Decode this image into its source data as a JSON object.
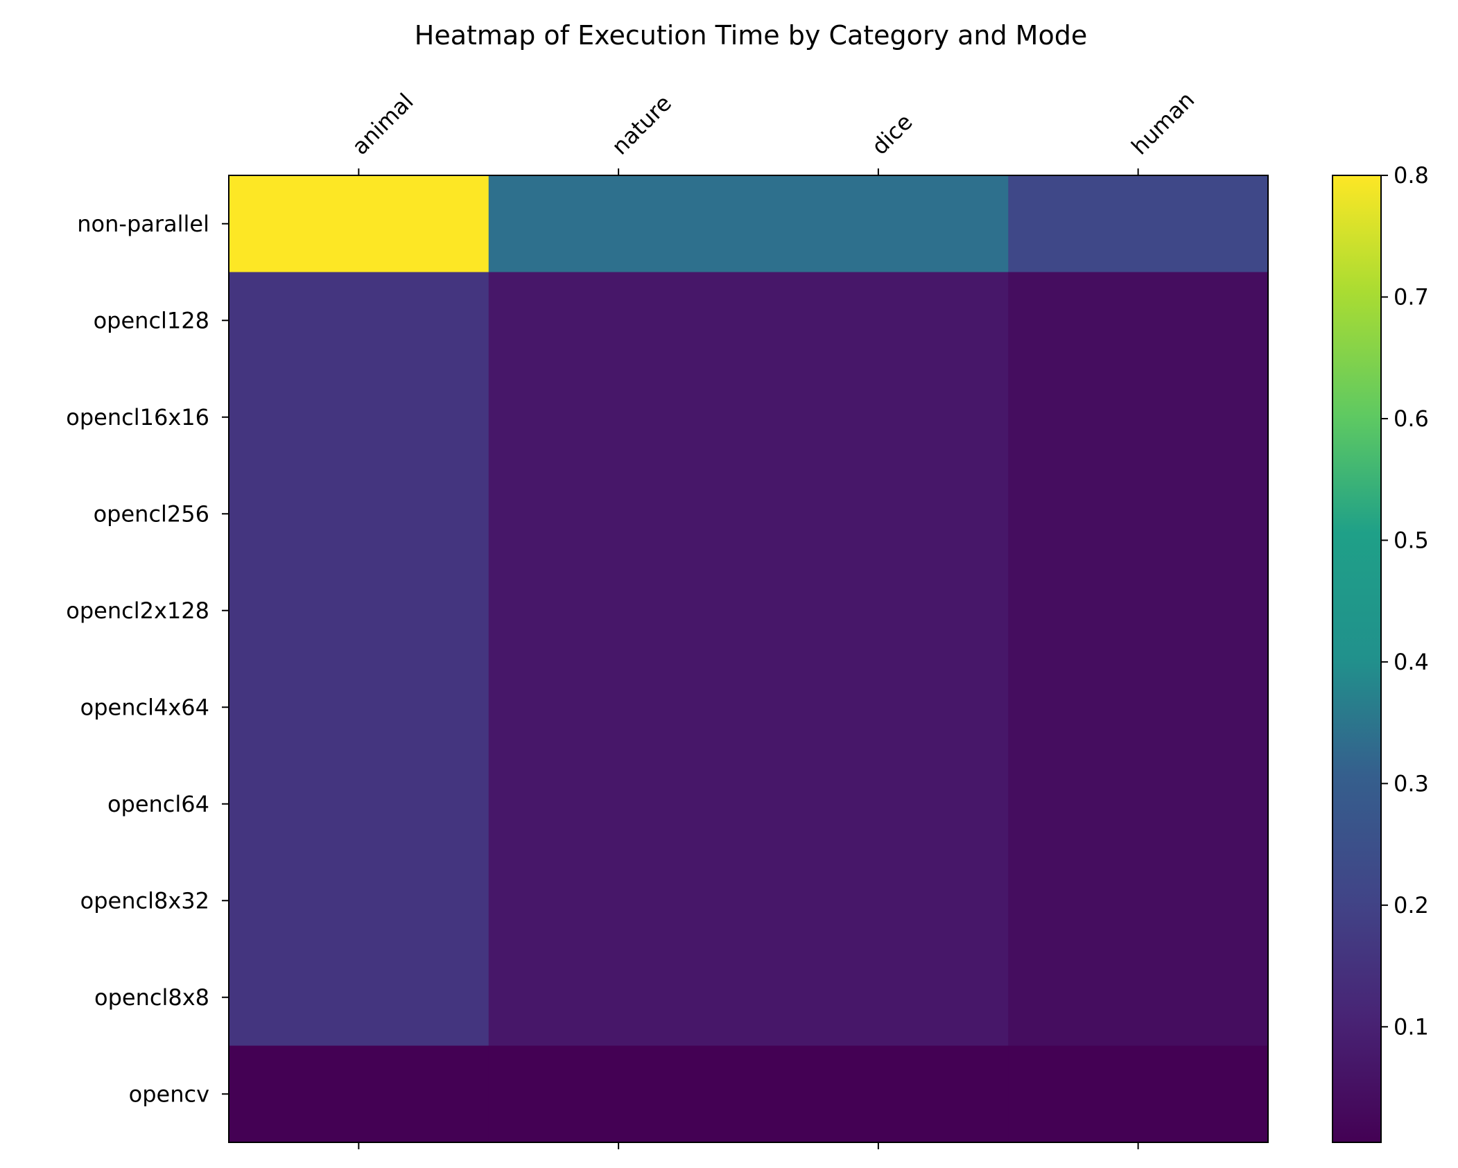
{
  "chart_data": {
    "type": "heatmap",
    "title": "Heatmap of Execution Time by Category and Mode",
    "xlabel": "",
    "ylabel": "",
    "x_categories": [
      "animal",
      "nature",
      "dice",
      "human"
    ],
    "y_categories": [
      "non-parallel",
      "opencl128",
      "opencl16x16",
      "opencl256",
      "opencl2x128",
      "opencl4x64",
      "opencl64",
      "opencl8x32",
      "opencl8x8",
      "opencv"
    ],
    "values": [
      [
        0.8,
        0.34,
        0.34,
        0.22
      ],
      [
        0.16,
        0.07,
        0.07,
        0.04
      ],
      [
        0.16,
        0.07,
        0.07,
        0.04
      ],
      [
        0.16,
        0.07,
        0.07,
        0.04
      ],
      [
        0.16,
        0.07,
        0.07,
        0.04
      ],
      [
        0.16,
        0.07,
        0.07,
        0.04
      ],
      [
        0.16,
        0.07,
        0.07,
        0.04
      ],
      [
        0.16,
        0.07,
        0.07,
        0.04
      ],
      [
        0.16,
        0.07,
        0.07,
        0.04
      ],
      [
        0.005,
        0.005,
        0.005,
        0.005
      ]
    ],
    "colormap": "viridis",
    "colorbar": {
      "range": [
        0.005,
        0.8
      ],
      "ticks": [
        0.1,
        0.2,
        0.3,
        0.4,
        0.5,
        0.6,
        0.7,
        0.8
      ],
      "tick_labels": [
        "0.1",
        "0.2",
        "0.3",
        "0.4",
        "0.5",
        "0.6",
        "0.7",
        "0.8"
      ]
    },
    "grid": false,
    "x_tick_position": "top"
  }
}
